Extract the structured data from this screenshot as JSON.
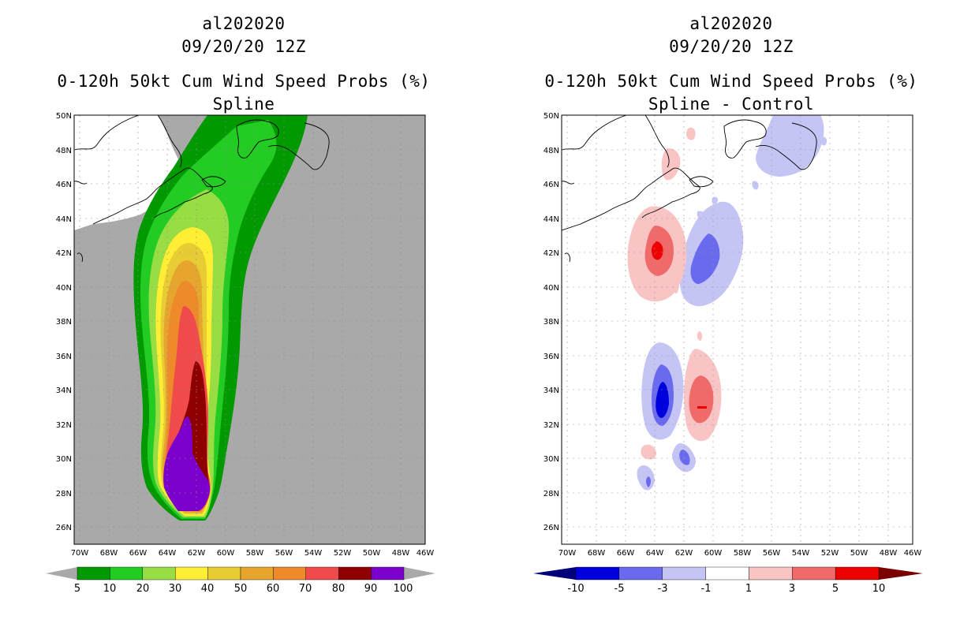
{
  "panels": {
    "left": {
      "storm_id": "al202020",
      "datetime": "09/20/20 12Z",
      "product": "0-120h 50kt Cum Wind Speed Probs (%)",
      "subtitle": "Spline",
      "colorbar": {
        "labels": [
          "5",
          "10",
          "20",
          "30",
          "40",
          "50",
          "60",
          "70",
          "80",
          "90",
          "100"
        ],
        "colors": [
          "#009900",
          "#22cc22",
          "#99dd44",
          "#ffee33",
          "#e8cc33",
          "#e6a62e",
          "#ef8a2a",
          "#f04a4a",
          "#8e0000",
          "#7b00cc"
        ]
      }
    },
    "right": {
      "storm_id": "al202020",
      "datetime": "09/20/20 12Z",
      "product": "0-120h 50kt Cum Wind Speed Probs (%)",
      "subtitle": "Spline - Control",
      "colorbar": {
        "labels": [
          "-10",
          "-5",
          "-3",
          "-1",
          "1",
          "3",
          "5",
          "10"
        ],
        "colors": [
          "#0000dd",
          "#6a6aee",
          "#c4c4f5",
          "#ffffff",
          "#f8c4c4",
          "#f06a6a",
          "#ee0000"
        ]
      }
    }
  },
  "axes": {
    "lat_labels": [
      "50N",
      "48N",
      "46N",
      "44N",
      "42N",
      "40N",
      "38N",
      "36N",
      "34N",
      "32N",
      "30N",
      "28N",
      "26N"
    ],
    "lon_labels": [
      "70W",
      "68W",
      "66W",
      "64W",
      "62W",
      "60W",
      "58W",
      "56W",
      "54W",
      "52W",
      "50W",
      "48W",
      "46W"
    ]
  },
  "colors": {
    "ocean": "#a9a9a9",
    "coast": "#000000",
    "grid": "#b0b0b0"
  }
}
